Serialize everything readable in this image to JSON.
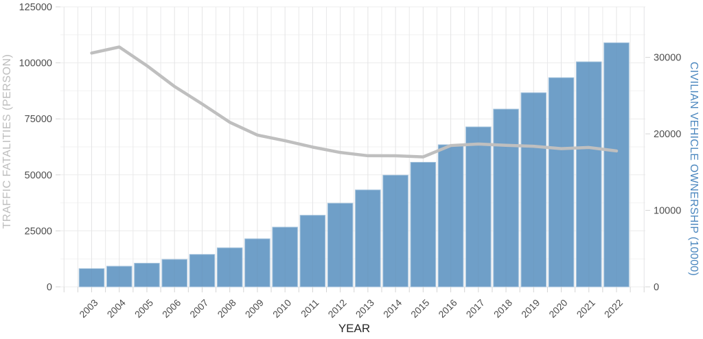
{
  "figure": {
    "xlabel": "YEAR",
    "xlabel_color": "#262626",
    "tick_label_color": "#4d4d4d",
    "gridline_color": "#ececec",
    "minor_gridline_color": "#f2f2f2",
    "axis_tick_color": "#d4d4d4",
    "background": "#ffffff",
    "left_axis": {
      "title": "TRAFFIC FATALITIES (PERSON)",
      "title_color": "#bdbdbd",
      "tick_labels": [
        "0",
        "25000",
        "50000",
        "75000",
        "100000",
        "125000"
      ],
      "tick_values": [
        0,
        25000,
        50000,
        75000,
        100000,
        125000
      ]
    },
    "right_axis": {
      "title": "CIVILIAN VEHICLE OWNERSHIP (10000)",
      "title_color": "#4a86be",
      "tick_labels": [
        "0",
        "10000",
        "20000",
        "30000"
      ],
      "tick_values": [
        0,
        10000,
        20000,
        30000
      ]
    }
  },
  "chart_data": {
    "type": "bar",
    "subtype": "dual-axis bar + line combo",
    "title": "",
    "xlabel": "YEAR",
    "ylabel_left": "TRAFFIC FATALITIES (PERSON)",
    "ylabel_right": "CIVILIAN VEHICLE OWNERSHIP (10000)",
    "grid": true,
    "legend": false,
    "categories": [
      "2003",
      "2004",
      "2005",
      "2006",
      "2007",
      "2008",
      "2009",
      "2010",
      "2011",
      "2012",
      "2013",
      "2014",
      "2015",
      "2016",
      "2017",
      "2018",
      "2019",
      "2020",
      "2021",
      "2022"
    ],
    "series": [
      {
        "name": "CIVILIAN VEHICLE OWNERSHIP (10000)",
        "type": "bar",
        "yaxis": "right",
        "color": "#6f9fc8",
        "edge_color": "#a3c2dc",
        "values": [
          2383,
          2694,
          3088,
          3586,
          4237,
          5100,
          6281,
          7802,
          9356,
          10933,
          12670,
          14598,
          16284,
          18574,
          20906,
          23231,
          25376,
          27341,
          29415,
          31903
        ]
      },
      {
        "name": "TRAFFIC FATALITIES (PERSON)",
        "type": "line",
        "yaxis": "left",
        "color": "#bfbfbf",
        "values": [
          104372,
          107077,
          98738,
          89455,
          81649,
          73484,
          67759,
          65225,
          62387,
          59997,
          58539,
          58523,
          58022,
          63093,
          63772,
          63194,
          62763,
          61703,
          62218,
          60676
        ]
      }
    ],
    "left_ylim": [
      0,
      125000
    ],
    "right_ylim": [
      0,
      36600
    ]
  }
}
